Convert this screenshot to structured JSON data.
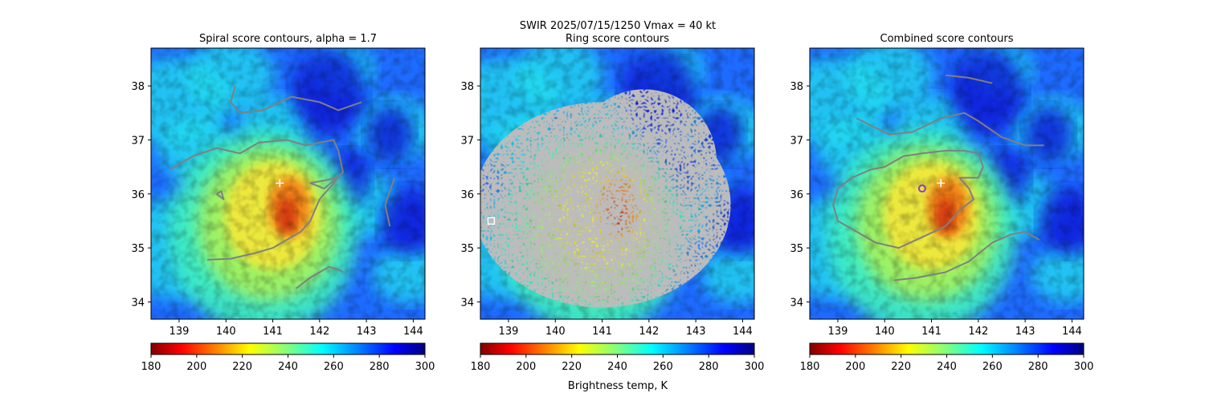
{
  "figure": {
    "suptitle_line1": "SWIR  2025/07/15/1250    Vmax = 40 kt",
    "colorbar_label": "Brightness temp, K"
  },
  "chart_data": [
    {
      "type": "heatmap",
      "title": "Spiral score contours, alpha =  1.7",
      "xlim": [
        138.4,
        144.25
      ],
      "ylim": [
        33.68,
        38.7
      ],
      "xticks": [
        "139",
        "140",
        "141",
        "142",
        "143",
        "144"
      ],
      "yticks": [
        "34",
        "35",
        "36",
        "37",
        "38"
      ],
      "colorbar": {
        "colormap": "jet_r",
        "range": [
          180,
          300
        ],
        "ticks": [
          "180",
          "200",
          "220",
          "240",
          "260",
          "280",
          "300"
        ]
      },
      "overlay": "spiral contours (gray)",
      "markers": [
        {
          "symbol": "plus",
          "color": "#ffffff",
          "lon": 141.15,
          "lat": 36.2
        }
      ],
      "contours": [
        [
          [
            140.2,
            38.0
          ],
          [
            140.1,
            37.7
          ],
          [
            140.3,
            37.5
          ],
          [
            140.8,
            37.55
          ],
          [
            141.4,
            37.8
          ],
          [
            142.0,
            37.7
          ],
          [
            142.4,
            37.55
          ],
          [
            142.9,
            37.7
          ]
        ],
        [
          [
            138.8,
            36.45
          ],
          [
            139.3,
            36.7
          ],
          [
            139.8,
            36.85
          ],
          [
            140.3,
            36.75
          ],
          [
            140.7,
            36.95
          ],
          [
            141.3,
            37.0
          ],
          [
            141.7,
            36.9
          ],
          [
            142.0,
            36.95
          ],
          [
            142.3,
            37.0
          ],
          [
            142.4,
            36.8
          ],
          [
            142.5,
            36.4
          ],
          [
            142.1,
            36.1
          ],
          [
            141.8,
            36.2
          ],
          [
            142.4,
            36.3
          ],
          [
            142.0,
            35.9
          ],
          [
            141.8,
            35.5
          ],
          [
            141.6,
            35.3
          ],
          [
            141.0,
            35.0
          ],
          [
            140.6,
            34.9
          ],
          [
            140.1,
            34.8
          ],
          [
            139.6,
            34.78
          ]
        ],
        [
          [
            139.8,
            36.0
          ],
          [
            139.95,
            35.9
          ],
          [
            139.9,
            36.05
          ],
          [
            139.8,
            36.0
          ]
        ],
        [
          [
            141.5,
            34.25
          ],
          [
            141.8,
            34.45
          ],
          [
            142.2,
            34.65
          ],
          [
            142.4,
            34.6
          ],
          [
            142.5,
            34.55
          ]
        ],
        [
          [
            143.6,
            36.3
          ],
          [
            143.4,
            35.8
          ],
          [
            143.5,
            35.4
          ]
        ]
      ]
    },
    {
      "type": "heatmap",
      "title": "Ring score contours",
      "xlim": [
        138.4,
        144.25
      ],
      "ylim": [
        33.68,
        38.7
      ],
      "xticks": [
        "139",
        "140",
        "141",
        "142",
        "143",
        "144"
      ],
      "yticks": [
        "34",
        "35",
        "36",
        "37",
        "38"
      ],
      "colorbar": {
        "colormap": "jet_r",
        "range": [
          180,
          300
        ],
        "ticks": [
          "180",
          "200",
          "220",
          "240",
          "260",
          "280",
          "300"
        ]
      },
      "overlay": "ring contours (gray, dense)",
      "markers": [
        {
          "symbol": "square",
          "color": "#ffffff",
          "lon": 138.63,
          "lat": 35.5
        }
      ],
      "ring_region": {
        "center_lon": 141.0,
        "center_lat": 35.8,
        "radius_deg": 2.3
      }
    },
    {
      "type": "heatmap",
      "title": "Combined score contours",
      "xlim": [
        138.4,
        144.25
      ],
      "ylim": [
        33.68,
        38.7
      ],
      "xticks": [
        "139",
        "140",
        "141",
        "142",
        "143",
        "144"
      ],
      "yticks": [
        "34",
        "35",
        "36",
        "37",
        "38"
      ],
      "colorbar": {
        "colormap": "jet_r",
        "range": [
          180,
          300
        ],
        "ticks": [
          "180",
          "200",
          "220",
          "240",
          "260",
          "280",
          "300"
        ]
      },
      "overlay": "combined contours (gray)",
      "markers": [
        {
          "symbol": "circle",
          "color": "#8b3bd6",
          "lon": 140.8,
          "lat": 36.1
        },
        {
          "symbol": "plus",
          "color": "#ffffff",
          "lon": 141.2,
          "lat": 36.2
        }
      ],
      "contours": [
        [
          [
            141.3,
            38.2
          ],
          [
            141.8,
            38.15
          ],
          [
            142.3,
            38.05
          ]
        ],
        [
          [
            139.4,
            37.4
          ],
          [
            140.1,
            37.1
          ],
          [
            140.6,
            37.15
          ],
          [
            141.2,
            37.4
          ],
          [
            141.7,
            37.5
          ],
          [
            142.0,
            37.35
          ],
          [
            142.5,
            37.05
          ],
          [
            143.0,
            36.9
          ],
          [
            143.4,
            36.9
          ]
        ],
        [
          [
            141.3,
            36.8
          ],
          [
            141.7,
            36.8
          ],
          [
            142.0,
            36.75
          ],
          [
            142.1,
            36.5
          ],
          [
            142.0,
            36.3
          ],
          [
            141.6,
            36.3
          ],
          [
            141.8,
            36.1
          ],
          [
            141.9,
            35.9
          ],
          [
            141.6,
            35.7
          ],
          [
            141.3,
            35.4
          ],
          [
            140.8,
            35.2
          ],
          [
            140.3,
            35.0
          ],
          [
            139.8,
            35.1
          ],
          [
            139.4,
            35.3
          ],
          [
            139.0,
            35.5
          ],
          [
            138.9,
            35.8
          ],
          [
            139.0,
            36.1
          ],
          [
            139.3,
            36.3
          ],
          [
            139.7,
            36.45
          ],
          [
            140.0,
            36.5
          ],
          [
            140.4,
            36.7
          ],
          [
            140.8,
            36.75
          ],
          [
            141.3,
            36.8
          ]
        ],
        [
          [
            140.2,
            34.4
          ],
          [
            140.7,
            34.45
          ],
          [
            141.3,
            34.55
          ],
          [
            141.8,
            34.75
          ],
          [
            142.3,
            35.1
          ],
          [
            142.7,
            35.25
          ],
          [
            143.0,
            35.3
          ],
          [
            143.3,
            35.15
          ]
        ]
      ]
    }
  ]
}
